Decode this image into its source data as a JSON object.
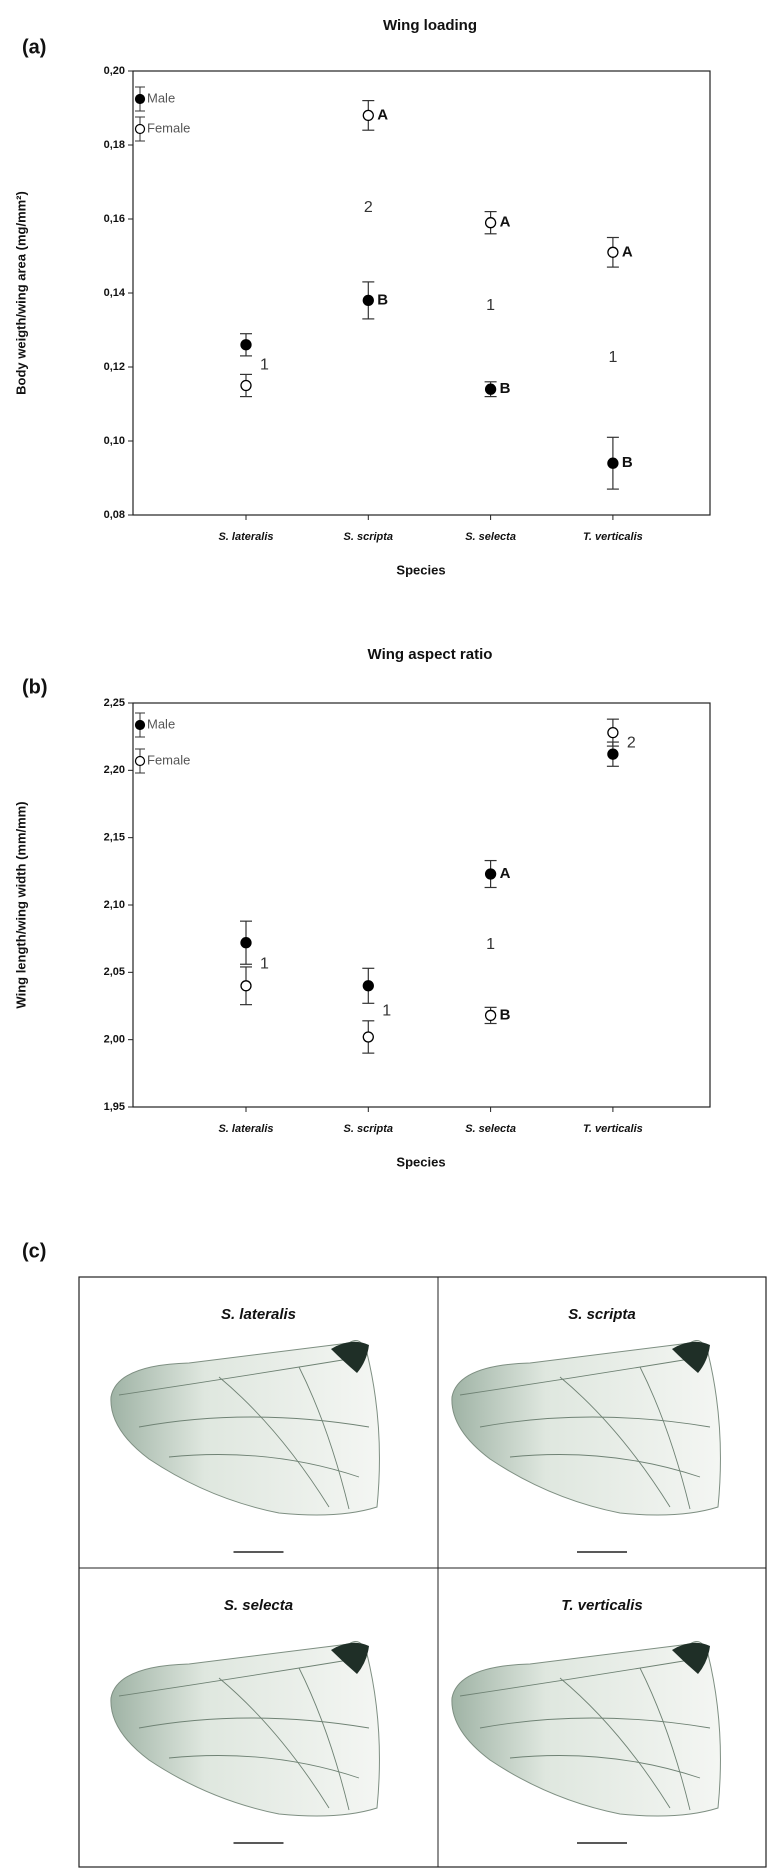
{
  "chart_data": [
    {
      "type": "scatter",
      "panel_label": "(a)",
      "title": "Wing loading",
      "x_label": "Species",
      "y_label": "Body weigth/wing area (mg/mm²)",
      "categories": [
        "S. lateralis",
        "S. scripta",
        "S. selecta",
        "T. verticalis"
      ],
      "series": [
        {
          "name": "Male",
          "color": "#000000",
          "values": [
            0.126,
            0.138,
            0.114,
            0.094
          ],
          "errors": [
            0.003,
            0.005,
            0.002,
            0.007
          ],
          "letters": [
            null,
            "B",
            "B",
            "B"
          ]
        },
        {
          "name": "Female",
          "color": "#ffffff",
          "values": [
            0.115,
            0.188,
            0.159,
            0.151
          ],
          "errors": [
            0.003,
            0.004,
            0.003,
            0.004
          ],
          "letters": [
            null,
            "A",
            "A",
            "A"
          ]
        }
      ],
      "group_labels": [
        "1",
        "2",
        "1",
        "1"
      ],
      "ylim": [
        0.08,
        0.2
      ],
      "yticks": [
        {
          "value": 0.08,
          "label": "0,08"
        },
        {
          "value": 0.1,
          "label": "0,10"
        },
        {
          "value": 0.12,
          "label": "0,12"
        },
        {
          "value": 0.14,
          "label": "0,14"
        },
        {
          "value": 0.16,
          "label": "0,16"
        },
        {
          "value": 0.18,
          "label": "0,18"
        },
        {
          "value": 0.2,
          "label": "0,20"
        }
      ],
      "legend": "top-left"
    },
    {
      "type": "scatter",
      "panel_label": "(b)",
      "title": "Wing aspect ratio",
      "x_label": "Species",
      "y_label": "Wing length/wing width (mm/mm)",
      "categories": [
        "S. lateralis",
        "S. scripta",
        "S. selecta",
        "T. verticalis"
      ],
      "series": [
        {
          "name": "Male",
          "color": "#000000",
          "values": [
            2.072,
            2.04,
            2.123,
            2.212
          ],
          "errors": [
            0.016,
            0.013,
            0.01,
            0.009
          ],
          "letters": [
            null,
            null,
            "A",
            null
          ]
        },
        {
          "name": "Female",
          "color": "#ffffff",
          "values": [
            2.04,
            2.002,
            2.018,
            2.228
          ],
          "errors": [
            0.014,
            0.012,
            0.006,
            0.01
          ],
          "letters": [
            null,
            null,
            "B",
            null
          ]
        }
      ],
      "group_labels": [
        "1",
        "1",
        "1",
        "2"
      ],
      "ylim": [
        1.95,
        2.25
      ],
      "yticks": [
        {
          "value": 1.95,
          "label": "1,95"
        },
        {
          "value": 2.0,
          "label": "2,00"
        },
        {
          "value": 2.05,
          "label": "2,05"
        },
        {
          "value": 2.1,
          "label": "2,10"
        },
        {
          "value": 2.15,
          "label": "2,15"
        },
        {
          "value": 2.2,
          "label": "2,20"
        },
        {
          "value": 2.25,
          "label": "2,25"
        }
      ],
      "legend": "top-left"
    }
  ],
  "photo_panel": {
    "panel_label": "(c)",
    "panels": [
      {
        "title": "S. lateralis"
      },
      {
        "title": "S. scripta"
      },
      {
        "title": "S. selecta"
      },
      {
        "title": "T. verticalis"
      }
    ]
  }
}
